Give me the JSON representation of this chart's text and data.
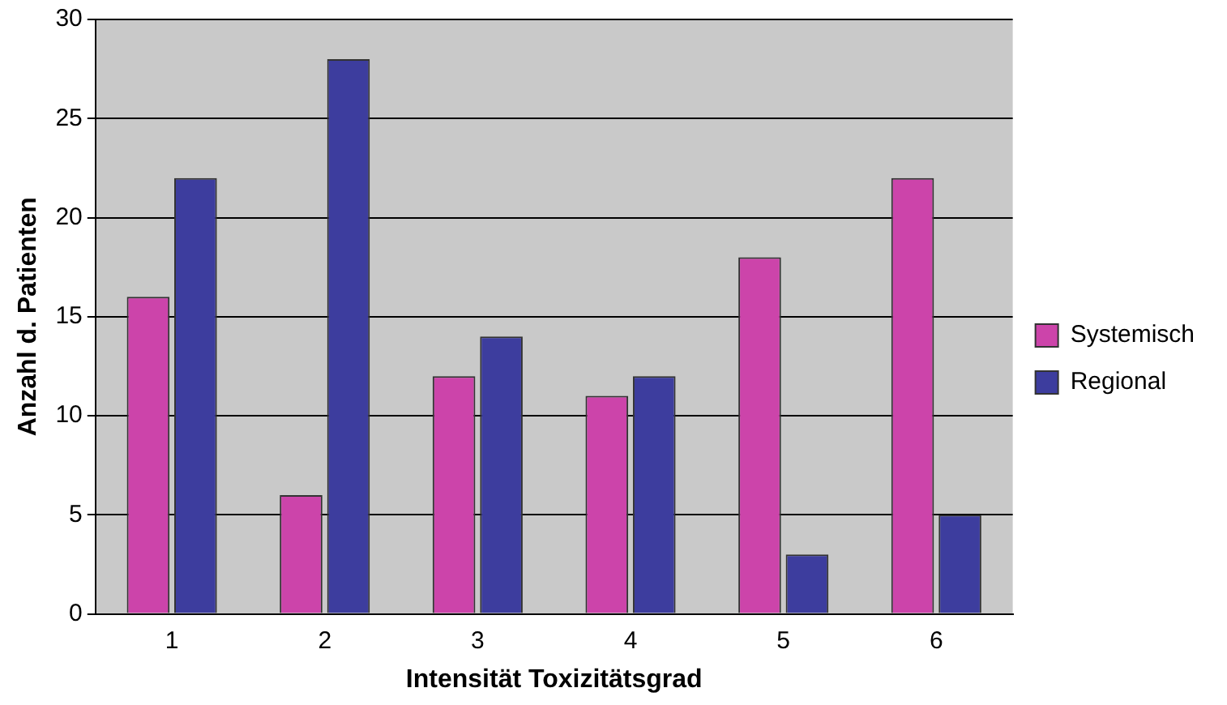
{
  "chart_data": {
    "type": "bar",
    "xlabel": "Intensität Toxizitätsgrad",
    "ylabel": "Anzahl d. Patienten",
    "categories": [
      "1",
      "2",
      "3",
      "4",
      "5",
      "6"
    ],
    "series": [
      {
        "name": "Systemisch",
        "color": "#cc44aa",
        "values": [
          16,
          6,
          12,
          11,
          18,
          22
        ]
      },
      {
        "name": "Regional",
        "color": "#3d3d9e",
        "values": [
          22,
          28,
          14,
          12,
          3,
          5
        ]
      }
    ],
    "ylim": [
      0,
      30
    ],
    "yticks": [
      0,
      5,
      10,
      15,
      20,
      25,
      30
    ],
    "grid": "y",
    "legend": "right"
  }
}
